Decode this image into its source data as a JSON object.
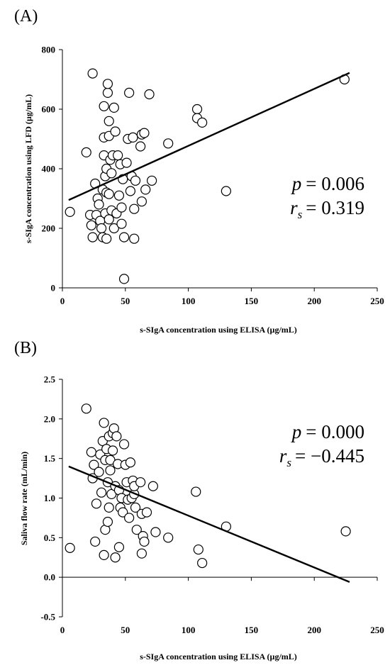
{
  "chart_data": [
    {
      "type": "scatter",
      "panel_label": "(A)",
      "xlabel": "s-SIgA concentration using ELISA (µg/mL)",
      "ylabel": "s-SIgA concentration using LFD (µg/mL)",
      "xlim": [
        0,
        250
      ],
      "ylim": [
        0,
        800
      ],
      "xticks": [
        "0",
        "50",
        "100",
        "150",
        "200",
        "250"
      ],
      "yticks": [
        "0",
        "200",
        "400",
        "600",
        "800"
      ],
      "stat_p_label": "p",
      "stat_p_value": "= 0.006",
      "stat_r_label": "r",
      "stat_r_sub": "s",
      "stat_r_value": "= 0.319",
      "trendline": {
        "x": [
          5,
          228
        ],
        "y": [
          295,
          722
        ]
      },
      "points": [
        [
          6,
          255
        ],
        [
          19,
          455
        ],
        [
          22,
          245
        ],
        [
          23,
          210
        ],
        [
          24,
          720
        ],
        [
          24,
          170
        ],
        [
          26,
          350
        ],
        [
          27,
          245
        ],
        [
          28,
          300
        ],
        [
          29,
          280
        ],
        [
          30,
          225
        ],
        [
          31,
          200
        ],
        [
          32,
          170
        ],
        [
          32,
          330
        ],
        [
          33,
          445
        ],
        [
          33,
          505
        ],
        [
          33,
          610
        ],
        [
          34,
          375
        ],
        [
          34,
          250
        ],
        [
          35,
          320
        ],
        [
          35,
          400
        ],
        [
          35,
          165
        ],
        [
          36,
          655
        ],
        [
          36,
          685
        ],
        [
          37,
          560
        ],
        [
          37,
          510
        ],
        [
          37,
          315
        ],
        [
          37,
          230
        ],
        [
          38,
          430
        ],
        [
          39,
          385
        ],
        [
          39,
          260
        ],
        [
          40,
          445
        ],
        [
          41,
          605
        ],
        [
          41,
          200
        ],
        [
          42,
          525
        ],
        [
          43,
          250
        ],
        [
          44,
          445
        ],
        [
          45,
          310
        ],
        [
          46,
          415
        ],
        [
          47,
          270
        ],
        [
          47,
          215
        ],
        [
          48,
          365
        ],
        [
          49,
          170
        ],
        [
          49,
          30
        ],
        [
          51,
          420
        ],
        [
          52,
          500
        ],
        [
          53,
          655
        ],
        [
          54,
          325
        ],
        [
          55,
          375
        ],
        [
          56,
          505
        ],
        [
          57,
          265
        ],
        [
          57,
          165
        ],
        [
          58,
          360
        ],
        [
          62,
          475
        ],
        [
          63,
          515
        ],
        [
          63,
          290
        ],
        [
          65,
          520
        ],
        [
          66,
          330
        ],
        [
          69,
          650
        ],
        [
          71,
          360
        ],
        [
          84,
          485
        ],
        [
          107,
          600
        ],
        [
          107,
          570
        ],
        [
          111,
          555
        ],
        [
          130,
          325
        ],
        [
          224,
          700
        ]
      ]
    },
    {
      "type": "scatter",
      "panel_label": "(B)",
      "xlabel": "s-SIgA concentration using ELISA (µg/mL)",
      "ylabel": "Saliva flow rate (mL/min)",
      "xlim": [
        0,
        250
      ],
      "ylim": [
        -0.5,
        2.5
      ],
      "xticks": [
        "0",
        "50",
        "100",
        "150",
        "200",
        "250"
      ],
      "yticks": [
        "-0.5",
        "0.0",
        "0.5",
        "1.0",
        "1.5",
        "2.0",
        "2.5"
      ],
      "stat_p_label": "p",
      "stat_p_value": "= 0.000",
      "stat_r_label": "r",
      "stat_r_sub": "s",
      "stat_r_value": "= −0.445",
      "trendline": {
        "x": [
          5,
          228
        ],
        "y": [
          1.4,
          -0.06
        ]
      },
      "points": [
        [
          6,
          0.37
        ],
        [
          19,
          2.13
        ],
        [
          23,
          1.58
        ],
        [
          24,
          1.25
        ],
        [
          25,
          1.42
        ],
        [
          26,
          0.45
        ],
        [
          27,
          0.93
        ],
        [
          29,
          1.33
        ],
        [
          30,
          1.55
        ],
        [
          31,
          1.07
        ],
        [
          32,
          1.72
        ],
        [
          33,
          0.28
        ],
        [
          33,
          1.95
        ],
        [
          34,
          0.6
        ],
        [
          34,
          1.48
        ],
        [
          35,
          1.62
        ],
        [
          36,
          0.7
        ],
        [
          36,
          1.2
        ],
        [
          37,
          1.78
        ],
        [
          37,
          0.88
        ],
        [
          38,
          1.35
        ],
        [
          38,
          1.48
        ],
        [
          39,
          1.05
        ],
        [
          40,
          1.82
        ],
        [
          40,
          1.6
        ],
        [
          41,
          1.88
        ],
        [
          42,
          0.25
        ],
        [
          42,
          1.15
        ],
        [
          43,
          1.78
        ],
        [
          44,
          1.43
        ],
        [
          45,
          0.38
        ],
        [
          45,
          1.1
        ],
        [
          46,
          0.88
        ],
        [
          47,
          1.0
        ],
        [
          48,
          0.82
        ],
        [
          49,
          1.68
        ],
        [
          50,
          1.42
        ],
        [
          51,
          1.2
        ],
        [
          52,
          0.98
        ],
        [
          53,
          0.75
        ],
        [
          54,
          1.45
        ],
        [
          55,
          1.0
        ],
        [
          56,
          1.22
        ],
        [
          57,
          1.05
        ],
        [
          57,
          1.15
        ],
        [
          58,
          0.88
        ],
        [
          59,
          0.6
        ],
        [
          62,
          1.2
        ],
        [
          63,
          0.8
        ],
        [
          63,
          0.3
        ],
        [
          64,
          0.52
        ],
        [
          65,
          0.45
        ],
        [
          67,
          0.82
        ],
        [
          72,
          1.15
        ],
        [
          74,
          0.57
        ],
        [
          84,
          0.5
        ],
        [
          106,
          1.08
        ],
        [
          108,
          0.35
        ],
        [
          111,
          0.18
        ],
        [
          130,
          0.64
        ],
        [
          225,
          0.58
        ]
      ]
    }
  ]
}
